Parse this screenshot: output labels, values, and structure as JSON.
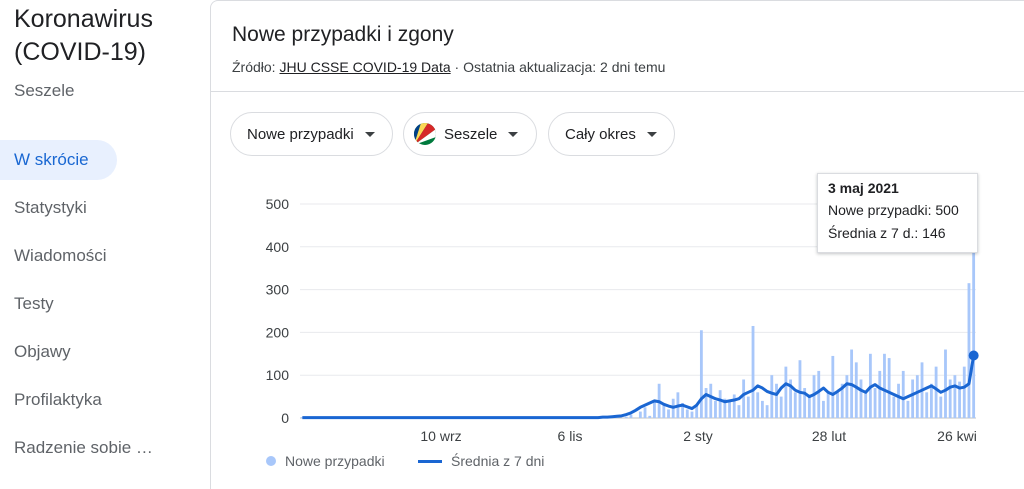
{
  "sidebar": {
    "title": "Koronawirus (COVID-19)",
    "region": "Seszele",
    "items": [
      {
        "label": "W skrócie",
        "active": true
      },
      {
        "label": "Statystyki"
      },
      {
        "label": "Wiadomości"
      },
      {
        "label": "Testy"
      },
      {
        "label": "Objawy"
      },
      {
        "label": "Profilaktyka"
      },
      {
        "label": "Radzenie sobie …"
      }
    ]
  },
  "panel": {
    "title": "Nowe przypadki i zgony",
    "source_prefix": "Źródło:",
    "source_link": "JHU CSSE COVID-19 Data",
    "source_suffix": "· Ostatnia aktualizacja: 2 dni temu"
  },
  "filters": {
    "metric": "Nowe przypadki",
    "country": "Seszele",
    "period": "Cały okres"
  },
  "tooltip": {
    "date": "3 maj 2021",
    "cases_label": "Nowe przypadki: 500",
    "avg_label": "Średnia z 7 d.: 146"
  },
  "colors": {
    "bars": "#a8c7fa",
    "line": "#1a66d2",
    "grid": "#e8eaed",
    "active_nav_bg": "#e8f0fe",
    "active_nav_text": "#1967d2"
  },
  "chart_data": {
    "type": "bar",
    "yticks": [
      0,
      100,
      200,
      300,
      400,
      500
    ],
    "ylim": [
      0,
      500
    ],
    "xticks": [
      "10 wrz",
      "6 lis",
      "2 sty",
      "28 lut",
      "26 kwi"
    ],
    "series": [
      {
        "name": "Nowe przypadki",
        "style": "bars",
        "values": [
          2,
          0,
          0,
          1,
          0,
          2,
          0,
          0,
          0,
          1,
          0,
          0,
          0,
          0,
          3,
          0,
          0,
          1,
          0,
          0,
          0,
          0,
          0,
          2,
          0,
          0,
          0,
          0,
          1,
          0,
          0,
          0,
          0,
          0,
          0,
          0,
          1,
          0,
          0,
          0,
          0,
          0,
          0,
          0,
          0,
          0,
          2,
          0,
          0,
          0,
          0,
          0,
          0,
          1,
          0,
          0,
          0,
          0,
          0,
          0,
          0,
          0,
          3,
          0,
          0,
          0,
          0,
          5,
          0,
          3,
          8,
          0,
          15,
          25,
          5,
          40,
          80,
          30,
          20,
          45,
          60,
          35,
          20,
          15,
          30,
          205,
          70,
          80,
          40,
          65,
          45,
          40,
          55,
          30,
          90,
          50,
          215,
          60,
          40,
          30,
          100,
          80,
          50,
          120,
          90,
          60,
          135,
          70,
          55,
          100,
          110,
          40,
          60,
          145,
          60,
          80,
          100,
          160,
          130,
          90,
          60,
          150,
          70,
          110,
          150,
          140,
          50,
          80,
          110,
          40,
          90,
          100,
          130,
          60,
          80,
          120,
          50,
          160,
          90,
          100,
          85,
          120,
          315,
          500
        ]
      },
      {
        "name": "Średnia z 7 dni",
        "style": "line",
        "values": [
          1,
          1,
          1,
          1,
          1,
          1,
          1,
          1,
          1,
          1,
          1,
          1,
          1,
          1,
          1,
          1,
          1,
          1,
          1,
          1,
          1,
          1,
          1,
          1,
          1,
          1,
          1,
          1,
          1,
          1,
          1,
          1,
          1,
          1,
          1,
          1,
          1,
          1,
          1,
          1,
          1,
          1,
          1,
          1,
          1,
          1,
          1,
          1,
          1,
          1,
          1,
          1,
          1,
          1,
          1,
          1,
          1,
          1,
          1,
          1,
          1,
          1,
          1,
          1,
          2,
          2,
          3,
          4,
          5,
          8,
          12,
          18,
          25,
          30,
          35,
          40,
          38,
          32,
          28,
          25,
          28,
          30,
          26,
          22,
          30,
          45,
          55,
          50,
          45,
          42,
          38,
          40,
          42,
          45,
          55,
          60,
          65,
          75,
          70,
          62,
          58,
          55,
          70,
          80,
          75,
          65,
          60,
          58,
          50,
          55,
          62,
          70,
          60,
          55,
          62,
          70,
          80,
          78,
          72,
          65,
          60,
          72,
          78,
          70,
          65,
          60,
          55,
          50,
          45,
          50,
          55,
          60,
          65,
          70,
          75,
          68,
          60,
          65,
          72,
          75,
          70,
          72,
          80,
          146
        ]
      }
    ]
  }
}
